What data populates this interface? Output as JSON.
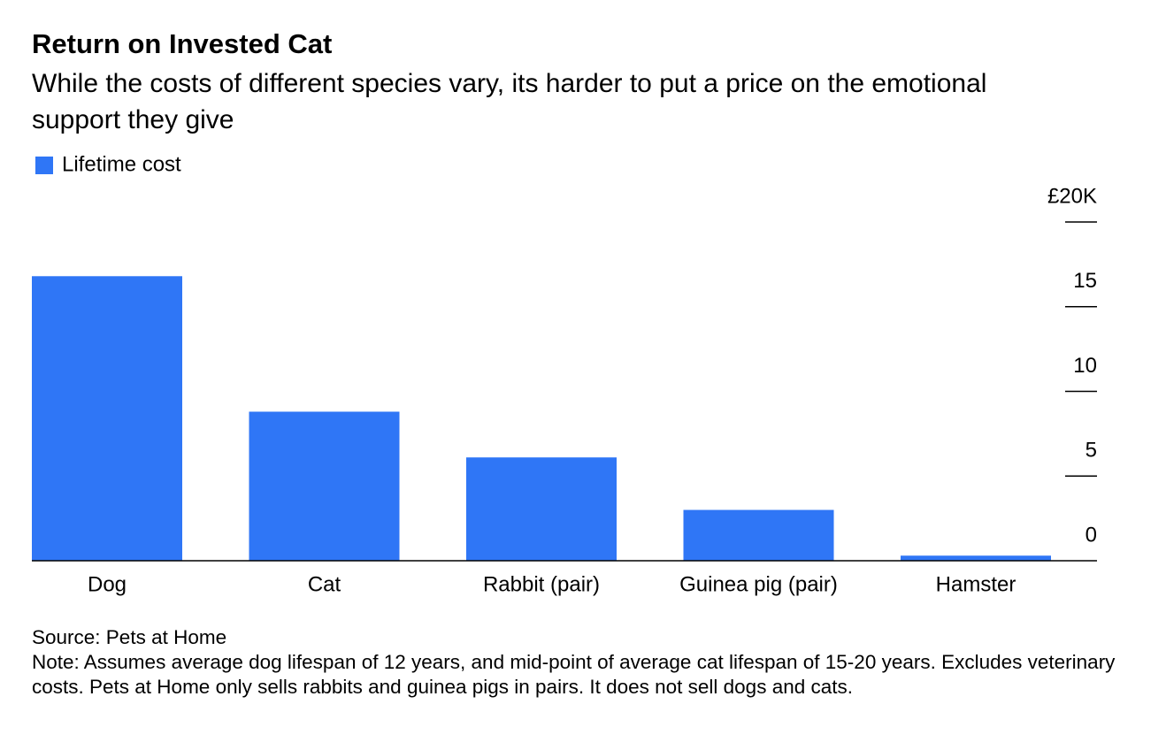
{
  "chart_data": {
    "type": "bar",
    "title": "Return on Invested Cat",
    "subtitle": "While the costs of different species vary, its harder to put a price on the emotional support they give",
    "series": [
      {
        "name": "Lifetime cost",
        "color": "#2f76f6",
        "values": [
          16.8,
          8.8,
          6.1,
          3.0,
          0.3
        ]
      }
    ],
    "categories": [
      "Dog",
      "Cat",
      "Rabbit (pair)",
      "Guinea pig (pair)",
      "Hamster"
    ],
    "ylim": [
      0,
      20
    ],
    "yticks": [
      0,
      5,
      10,
      15,
      {
        "value": 20,
        "label": "£20K"
      }
    ],
    "source": "Source: Pets at Home",
    "note": "Note: Assumes average dog lifespan of 12 years, and mid-point of average cat lifespan of 15-20 years. Excludes veterinary costs. Pets at Home only sells rabbits and guinea pigs in pairs. It does not sell dogs and cats."
  }
}
